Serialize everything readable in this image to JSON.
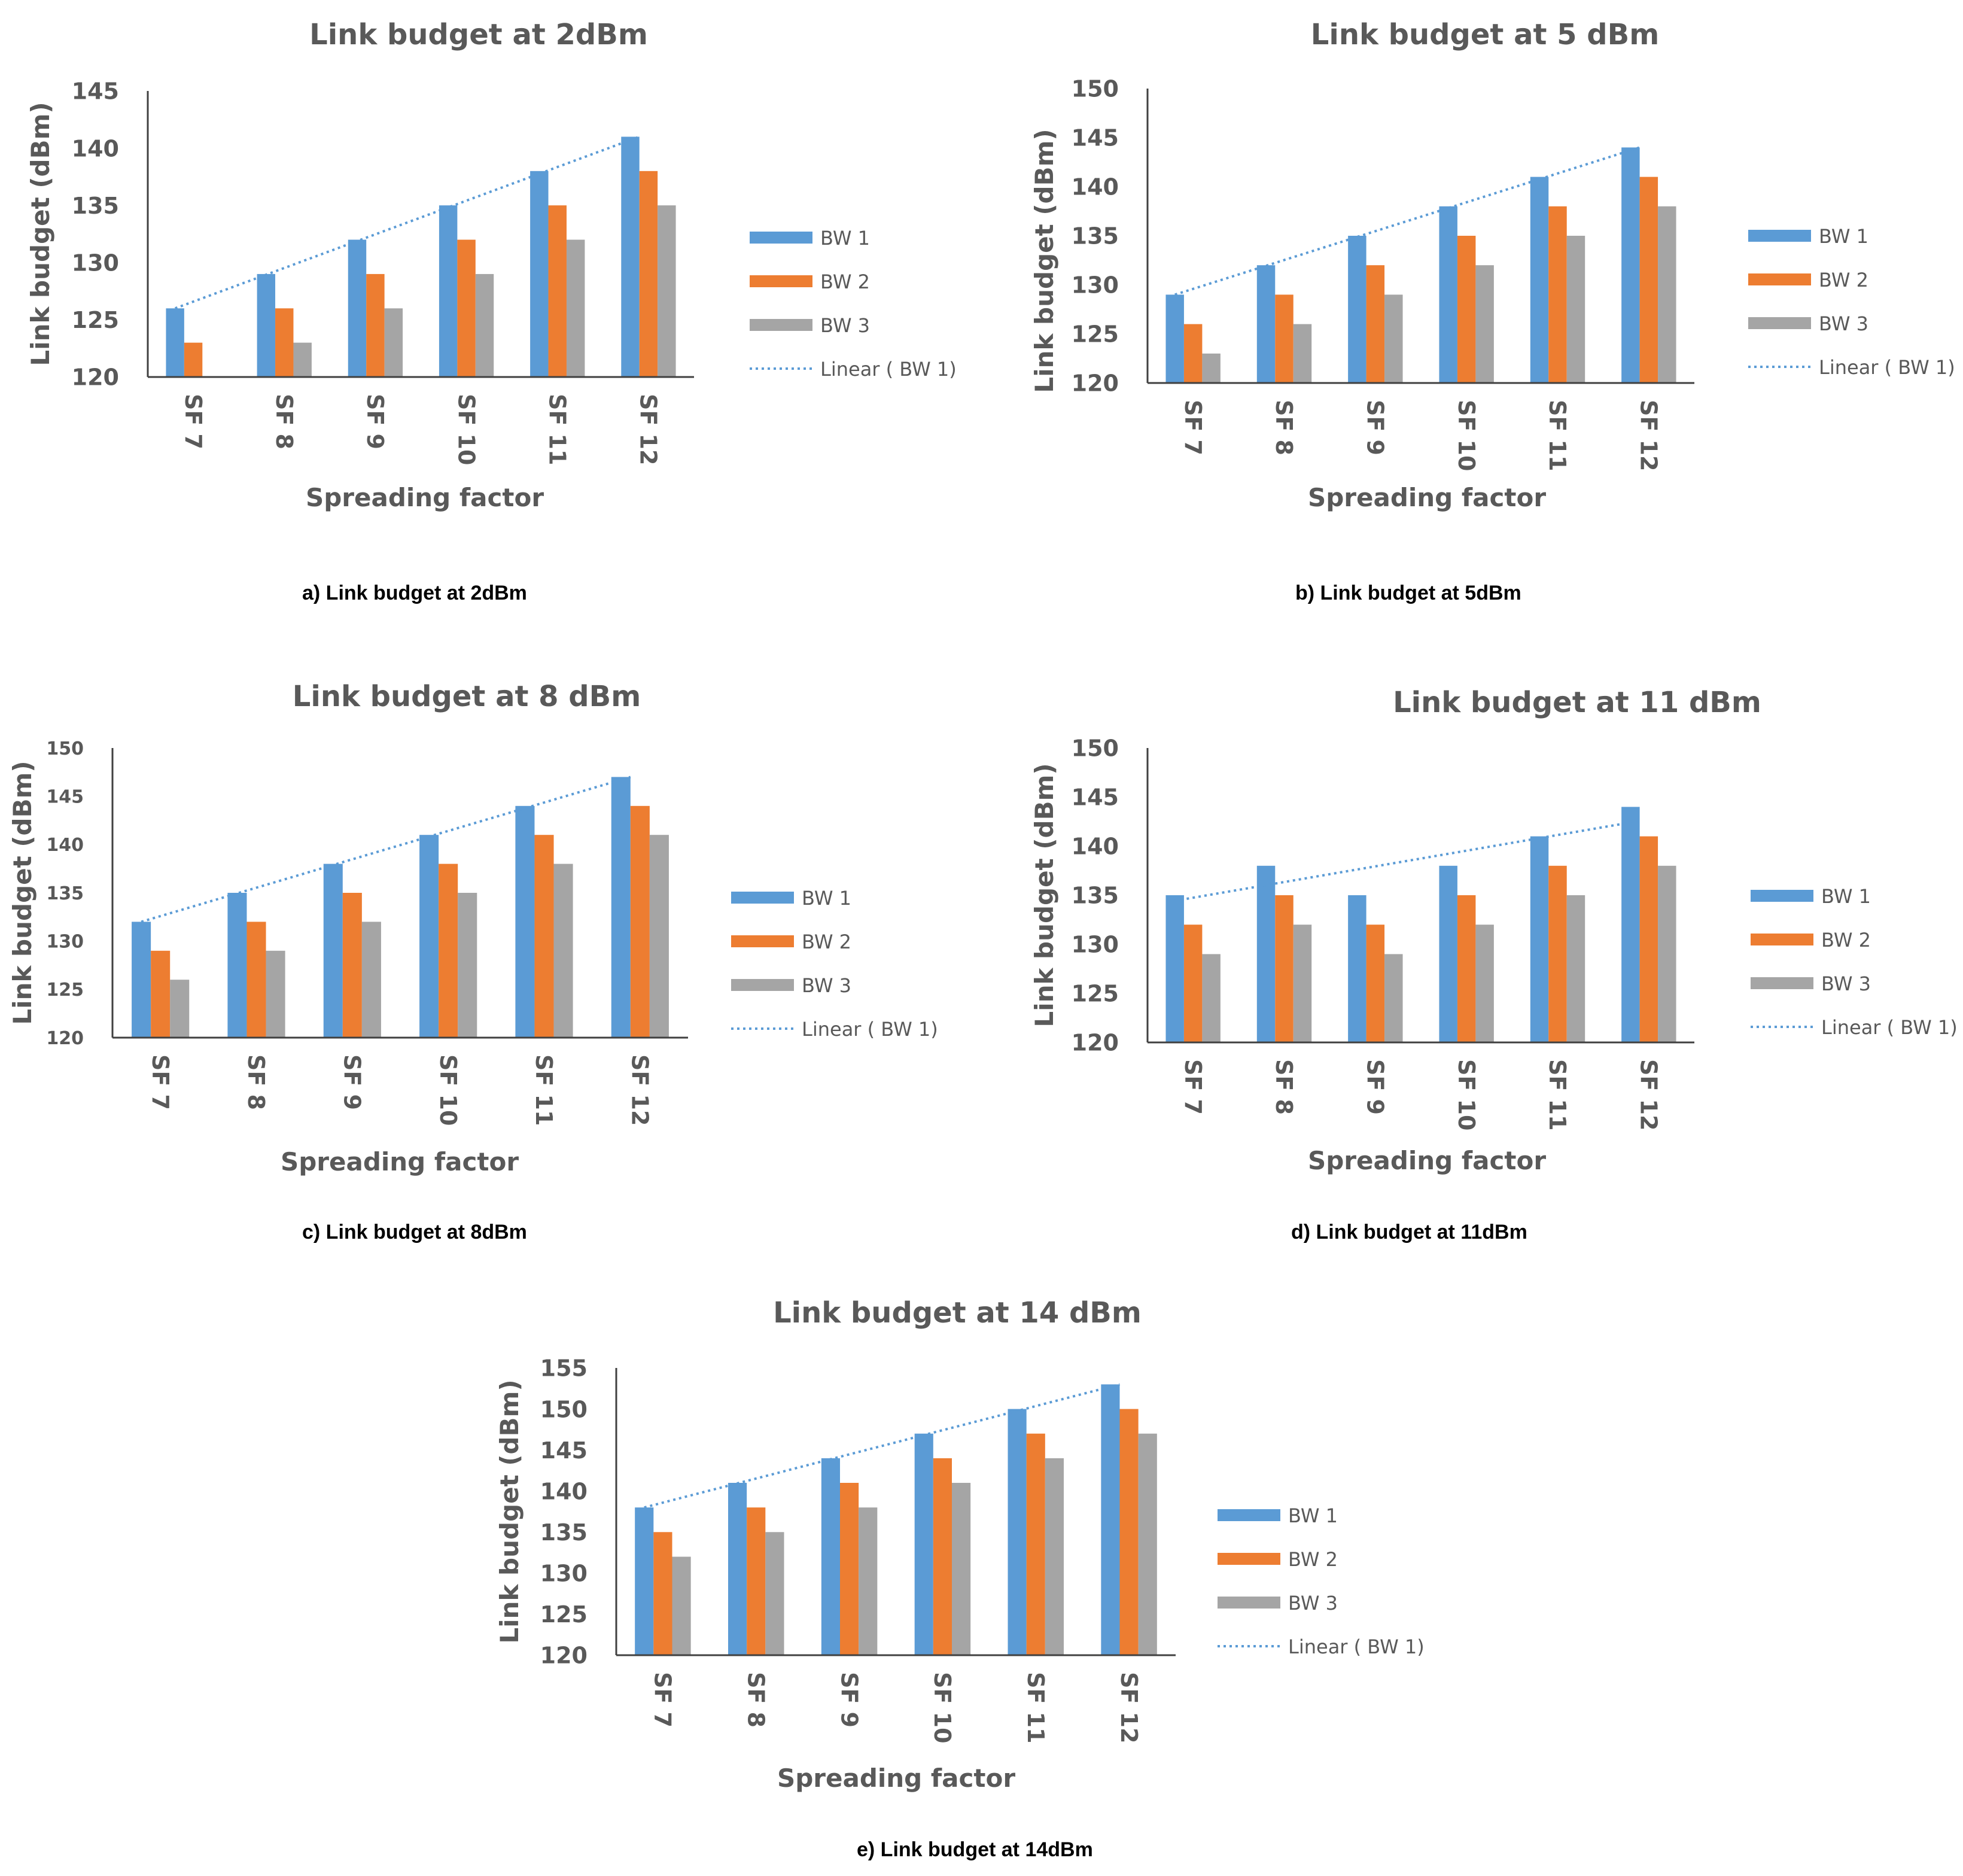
{
  "colors": {
    "bw1": "#5B9BD5",
    "bw2": "#ED7D31",
    "bw3": "#A5A5A5",
    "trend": "#5B9BD5",
    "text": "#595959",
    "axis": "#404040"
  },
  "chart_data": [
    {
      "type": "bar",
      "title": "Link budget at 2dBm",
      "xlabel": "Spreading factor",
      "ylabel": "Link budget (dBm)",
      "ylim": [
        120,
        145
      ],
      "yticks": [
        120,
        125,
        130,
        135,
        140,
        145
      ],
      "categories": [
        "SF 7",
        "SF 8",
        "SF 9",
        "SF 10",
        "SF 11",
        "SF 12"
      ],
      "series": [
        {
          "name": "BW 1",
          "values": [
            126,
            129,
            132,
            135,
            138,
            141
          ]
        },
        {
          "name": "BW 2",
          "values": [
            123,
            126,
            129,
            132,
            135,
            138
          ]
        },
        {
          "name": "BW 3",
          "values": [
            120,
            123,
            126,
            129,
            132,
            135
          ]
        }
      ],
      "trendline": {
        "name": "Linear ( BW 1)",
        "of": "BW 1",
        "style": "dotted"
      },
      "legend": "right",
      "grid": false,
      "caption": "a) Link budget at 2dBm"
    },
    {
      "type": "bar",
      "title": "Link budget at 5 dBm",
      "xlabel": "Spreading factor",
      "ylabel": "Link budget (dBm)",
      "ylim": [
        120,
        150
      ],
      "yticks": [
        120,
        125,
        130,
        135,
        140,
        145,
        150
      ],
      "categories": [
        "SF 7",
        "SF 8",
        "SF 9",
        "SF 10",
        "SF 11",
        "SF 12"
      ],
      "series": [
        {
          "name": "BW 1",
          "values": [
            129,
            132,
            135,
            138,
            141,
            144
          ]
        },
        {
          "name": "BW 2",
          "values": [
            126,
            129,
            132,
            135,
            138,
            141
          ]
        },
        {
          "name": "BW 3",
          "values": [
            123,
            126,
            129,
            132,
            135,
            138
          ]
        }
      ],
      "trendline": {
        "name": "Linear ( BW 1)",
        "of": "BW 1",
        "style": "dotted"
      },
      "legend": "right",
      "grid": false,
      "caption": "b) Link budget at 5dBm"
    },
    {
      "type": "bar",
      "title": "Link budget at 8 dBm",
      "xlabel": "Spreading factor",
      "ylabel": "Link budget (dBm)",
      "ylim": [
        120,
        150
      ],
      "yticks": [
        120,
        125,
        130,
        135,
        140,
        145,
        150
      ],
      "categories": [
        "SF 7",
        "SF 8",
        "SF 9",
        "SF 10",
        "SF 11",
        "SF 12"
      ],
      "series": [
        {
          "name": "BW 1",
          "values": [
            132,
            135,
            138,
            141,
            144,
            147
          ]
        },
        {
          "name": "BW 2",
          "values": [
            129,
            132,
            135,
            138,
            141,
            144
          ]
        },
        {
          "name": "BW 3",
          "values": [
            126,
            129,
            132,
            135,
            138,
            141
          ]
        }
      ],
      "trendline": {
        "name": "Linear ( BW 1)",
        "of": "BW 1",
        "style": "dotted"
      },
      "legend": "right",
      "grid": false,
      "caption": "c) Link budget at 8dBm"
    },
    {
      "type": "bar",
      "title": "Link budget at 11 dBm",
      "xlabel": "Spreading factor",
      "ylabel": "Link budget (dBm)",
      "ylim": [
        120,
        150
      ],
      "yticks": [
        120,
        125,
        130,
        135,
        140,
        145,
        150
      ],
      "categories": [
        "SF 7",
        "SF 8",
        "SF 9",
        "SF 10",
        "SF 11",
        "SF 12"
      ],
      "series": [
        {
          "name": "BW 1",
          "values": [
            135,
            138,
            135,
            138,
            141,
            144
          ]
        },
        {
          "name": "BW 2",
          "values": [
            132,
            135,
            132,
            135,
            138,
            141
          ]
        },
        {
          "name": "BW 3",
          "values": [
            129,
            132,
            129,
            132,
            135,
            138
          ]
        }
      ],
      "trendline": {
        "name": "Linear ( BW 1)",
        "of": "BW 1",
        "style": "dotted"
      },
      "legend": "right",
      "grid": false,
      "caption": "d) Link budget at 11dBm"
    },
    {
      "type": "bar",
      "title": "Link budget at 14 dBm",
      "xlabel": "Spreading factor",
      "ylabel": "Link budget (dBm)",
      "ylim": [
        120,
        155
      ],
      "yticks": [
        120,
        125,
        130,
        135,
        140,
        145,
        150,
        155
      ],
      "categories": [
        "SF 7",
        "SF 8",
        "SF 9",
        "SF 10",
        "SF 11",
        "SF 12"
      ],
      "series": [
        {
          "name": "BW 1",
          "values": [
            138,
            141,
            144,
            147,
            150,
            153
          ]
        },
        {
          "name": "BW 2",
          "values": [
            135,
            138,
            141,
            144,
            147,
            150
          ]
        },
        {
          "name": "BW 3",
          "values": [
            132,
            135,
            138,
            141,
            144,
            147
          ]
        }
      ],
      "trendline": {
        "name": "Linear ( BW 1)",
        "of": "BW 1",
        "style": "dotted"
      },
      "legend": "right",
      "grid": false,
      "caption": "e) Link budget at 14dBm"
    }
  ]
}
